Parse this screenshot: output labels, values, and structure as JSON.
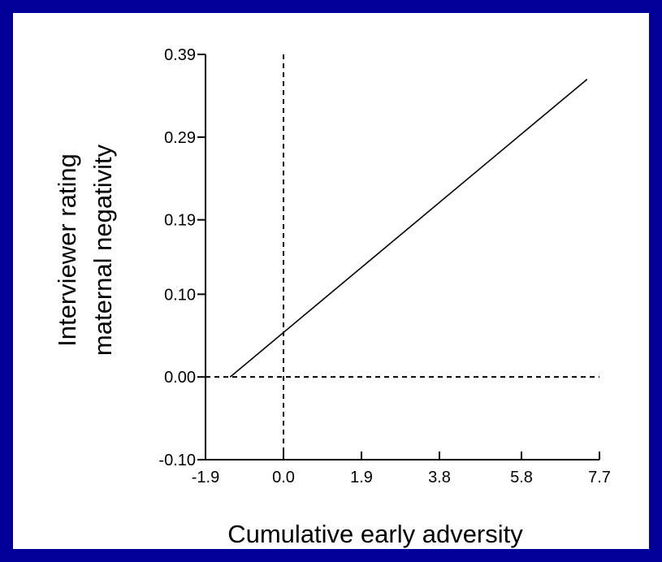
{
  "chart_data": {
    "type": "line",
    "title": "",
    "xlabel": "Cumulative early adversity",
    "ylabel_lines": [
      "Interviewer rating",
      "maternal negativity"
    ],
    "x_ticks": [
      "-1.9",
      "0.0",
      "1.9",
      "3.8",
      "5.8",
      "7.7"
    ],
    "y_ticks": [
      "0.39",
      "0.29",
      "0.19",
      "0.10",
      "0.00",
      "-0.10"
    ],
    "xlim": [
      -1.9,
      7.7
    ],
    "ylim": [
      -0.1,
      0.39
    ],
    "reference_lines": {
      "x": 0.0,
      "y": 0.0
    },
    "grid": false,
    "series": [
      {
        "x": [
          -1.3,
          7.4
        ],
        "y": [
          0.0,
          0.36
        ]
      }
    ]
  },
  "colors": {
    "frame": "#000099",
    "panel": "#ffffff",
    "ink": "#000000"
  }
}
